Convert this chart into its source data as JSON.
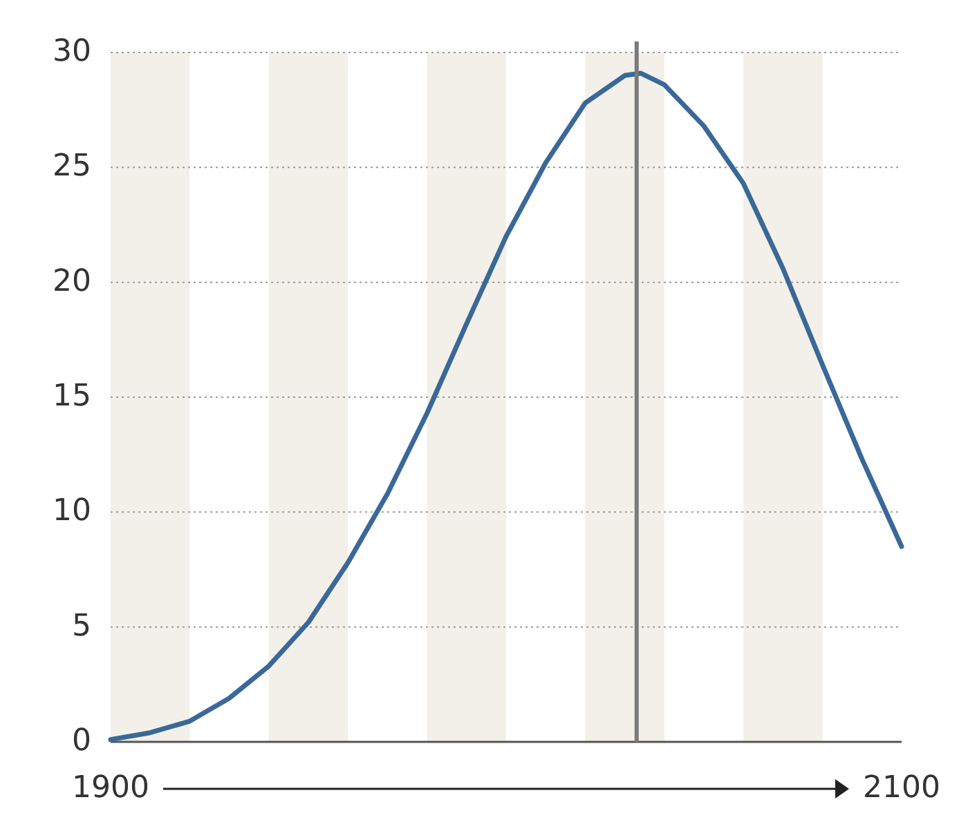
{
  "chart_data": {
    "type": "line",
    "xlim": [
      1900,
      2100
    ],
    "xticks": [
      1900,
      2100
    ],
    "ylim": [
      0,
      30
    ],
    "yticks": [
      0,
      5,
      10,
      15,
      20,
      25,
      30
    ],
    "grid": "y",
    "line_style": "solid",
    "x": [
      1900,
      1910,
      1920,
      1930,
      1940,
      1950,
      1960,
      1970,
      1980,
      1990,
      2000,
      2010,
      2020,
      2030,
      2034,
      2040,
      2050,
      2060,
      2070,
      2080,
      2090,
      2100
    ],
    "series": [
      {
        "color": "#3a6898",
        "values": [
          0.1,
          0.4,
          0.9,
          1.9,
          3.3,
          5.2,
          7.8,
          10.8,
          14.3,
          18.2,
          22.0,
          25.2,
          27.8,
          29.0,
          29.1,
          28.6,
          26.8,
          24.3,
          20.6,
          16.4,
          12.3,
          8.5
        ]
      }
    ],
    "bands": [
      {
        "axis": "x",
        "from": 1900,
        "to": 1920,
        "color": "#f3f0ea"
      },
      {
        "axis": "x",
        "from": 1940,
        "to": 1960,
        "color": "#f3f0ea"
      },
      {
        "axis": "x",
        "from": 1980,
        "to": 2000,
        "color": "#f3f0ea"
      },
      {
        "axis": "x",
        "from": 2020,
        "to": 2040,
        "color": "#f3f0ea"
      },
      {
        "axis": "x",
        "from": 2060,
        "to": 2080,
        "color": "#f3f0ea"
      }
    ],
    "ref_lines": [
      {
        "axis": "x",
        "value": 2033,
        "color": "#7a7a7a"
      }
    ]
  }
}
